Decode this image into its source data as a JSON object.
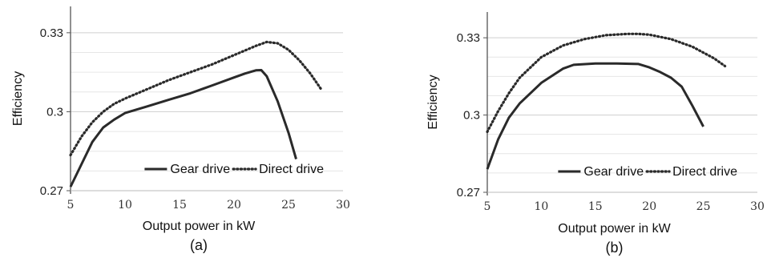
{
  "chart_data": [
    {
      "type": "line",
      "panel_label": "(a)",
      "xlabel": "Output power in kW",
      "ylabel": "Efficiency",
      "xlim": [
        5,
        30
      ],
      "ylim": [
        0.27,
        0.34
      ],
      "x_ticks": [
        5,
        10,
        15,
        20,
        25,
        30
      ],
      "y_ticks": [
        0.27,
        0.3,
        0.33
      ],
      "y_tick_labels": [
        "0.27",
        "0.3",
        "0.33"
      ],
      "grid": "horizontal",
      "legend_position": "bottom-right",
      "series": [
        {
          "name": "Gear drive",
          "style": "solid",
          "x": [
            5,
            6,
            7,
            8,
            9,
            10,
            12,
            14,
            16,
            18,
            20,
            21,
            22,
            22.5,
            23,
            24,
            25,
            25.7
          ],
          "y": [
            0.2715,
            0.28,
            0.2885,
            0.294,
            0.297,
            0.2995,
            0.302,
            0.3045,
            0.307,
            0.31,
            0.313,
            0.3145,
            0.3157,
            0.3158,
            0.3135,
            0.304,
            0.292,
            0.282
          ]
        },
        {
          "name": "Direct drive",
          "style": "dotted",
          "x": [
            5,
            6,
            7,
            8,
            9,
            10,
            12,
            14,
            16,
            18,
            20,
            22,
            23,
            24,
            25,
            26,
            27,
            28
          ],
          "y": [
            0.2835,
            0.2905,
            0.296,
            0.3,
            0.303,
            0.305,
            0.3085,
            0.312,
            0.315,
            0.318,
            0.3215,
            0.325,
            0.3265,
            0.326,
            0.3235,
            0.3195,
            0.3145,
            0.3085
          ]
        }
      ]
    },
    {
      "type": "line",
      "panel_label": "(b)",
      "xlabel": "Output power in kW",
      "ylabel": "Efficiency",
      "xlim": [
        5,
        30
      ],
      "ylim": [
        0.27,
        0.34
      ],
      "x_ticks": [
        5,
        10,
        15,
        20,
        25,
        30
      ],
      "y_ticks": [
        0.27,
        0.3,
        0.33
      ],
      "y_tick_labels": [
        "0.27",
        "0.3",
        "0.33"
      ],
      "grid": "horizontal",
      "legend_position": "bottom-right",
      "series": [
        {
          "name": "Gear drive",
          "style": "solid",
          "x": [
            5,
            6,
            7,
            8,
            10,
            12,
            13,
            15,
            17,
            19,
            20,
            21,
            22,
            23,
            24,
            25
          ],
          "y": [
            0.279,
            0.2905,
            0.299,
            0.3045,
            0.3125,
            0.318,
            0.3195,
            0.32,
            0.32,
            0.3198,
            0.3185,
            0.3167,
            0.3145,
            0.311,
            0.3035,
            0.2955
          ]
        },
        {
          "name": "Direct drive",
          "style": "dotted",
          "x": [
            5,
            6,
            7,
            8,
            10,
            12,
            14,
            16,
            18,
            19,
            20,
            22,
            24,
            26,
            27
          ],
          "y": [
            0.2935,
            0.3015,
            0.3085,
            0.3145,
            0.3225,
            0.327,
            0.3295,
            0.331,
            0.3315,
            0.3315,
            0.3312,
            0.3295,
            0.3265,
            0.322,
            0.319
          ]
        }
      ]
    }
  ]
}
